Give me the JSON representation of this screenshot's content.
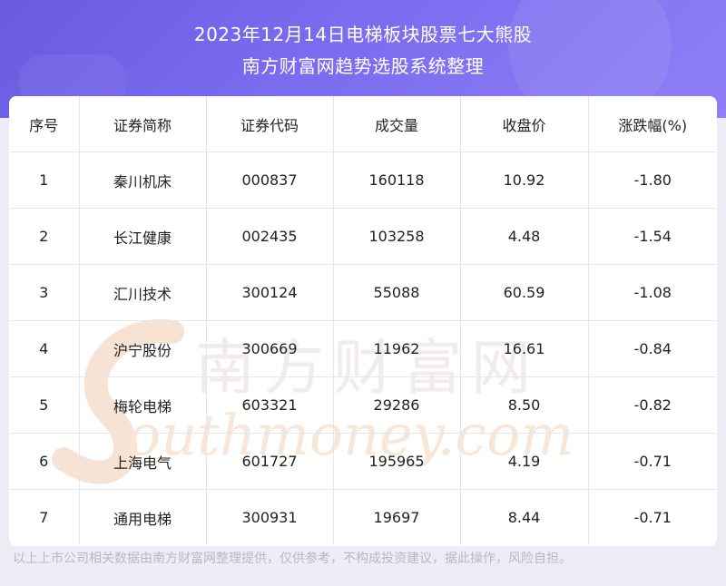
{
  "header": {
    "title_line1": "2023年12月14日电梯板块股票七大熊股",
    "title_line2": "南方财富网趋势选股系统整理"
  },
  "table": {
    "columns": [
      "序号",
      "证券简称",
      "证券代码",
      "成交量",
      "收盘价",
      "涨跌幅(%)"
    ],
    "rows": [
      [
        "1",
        "秦川机床",
        "000837",
        "160118",
        "10.92",
        "-1.80"
      ],
      [
        "2",
        "长江健康",
        "002435",
        "103258",
        "4.48",
        "-1.54"
      ],
      [
        "3",
        "汇川技术",
        "300124",
        "55088",
        "60.59",
        "-1.08"
      ],
      [
        "4",
        "沪宁股份",
        "300669",
        "11962",
        "16.61",
        "-0.84"
      ],
      [
        "5",
        "梅轮电梯",
        "603321",
        "29286",
        "8.50",
        "-0.82"
      ],
      [
        "6",
        "上海电气",
        "601727",
        "195965",
        "4.19",
        "-0.71"
      ],
      [
        "7",
        "通用电梯",
        "300931",
        "19697",
        "8.44",
        "-0.71"
      ]
    ]
  },
  "watermark": {
    "cn": "南方财富网",
    "en": "outhmoney.com"
  },
  "footer": {
    "disclaimer": "以上上市公司相关数据由南方财富网整理提供，仅供参考，不构成投资建议，据此操作，风险自担。"
  },
  "colors": {
    "header_gradient_start": "#6a5ae0",
    "header_gradient_end": "#8f7ff5",
    "background": "#eeedf6",
    "watermark": "#f3d9c4"
  }
}
